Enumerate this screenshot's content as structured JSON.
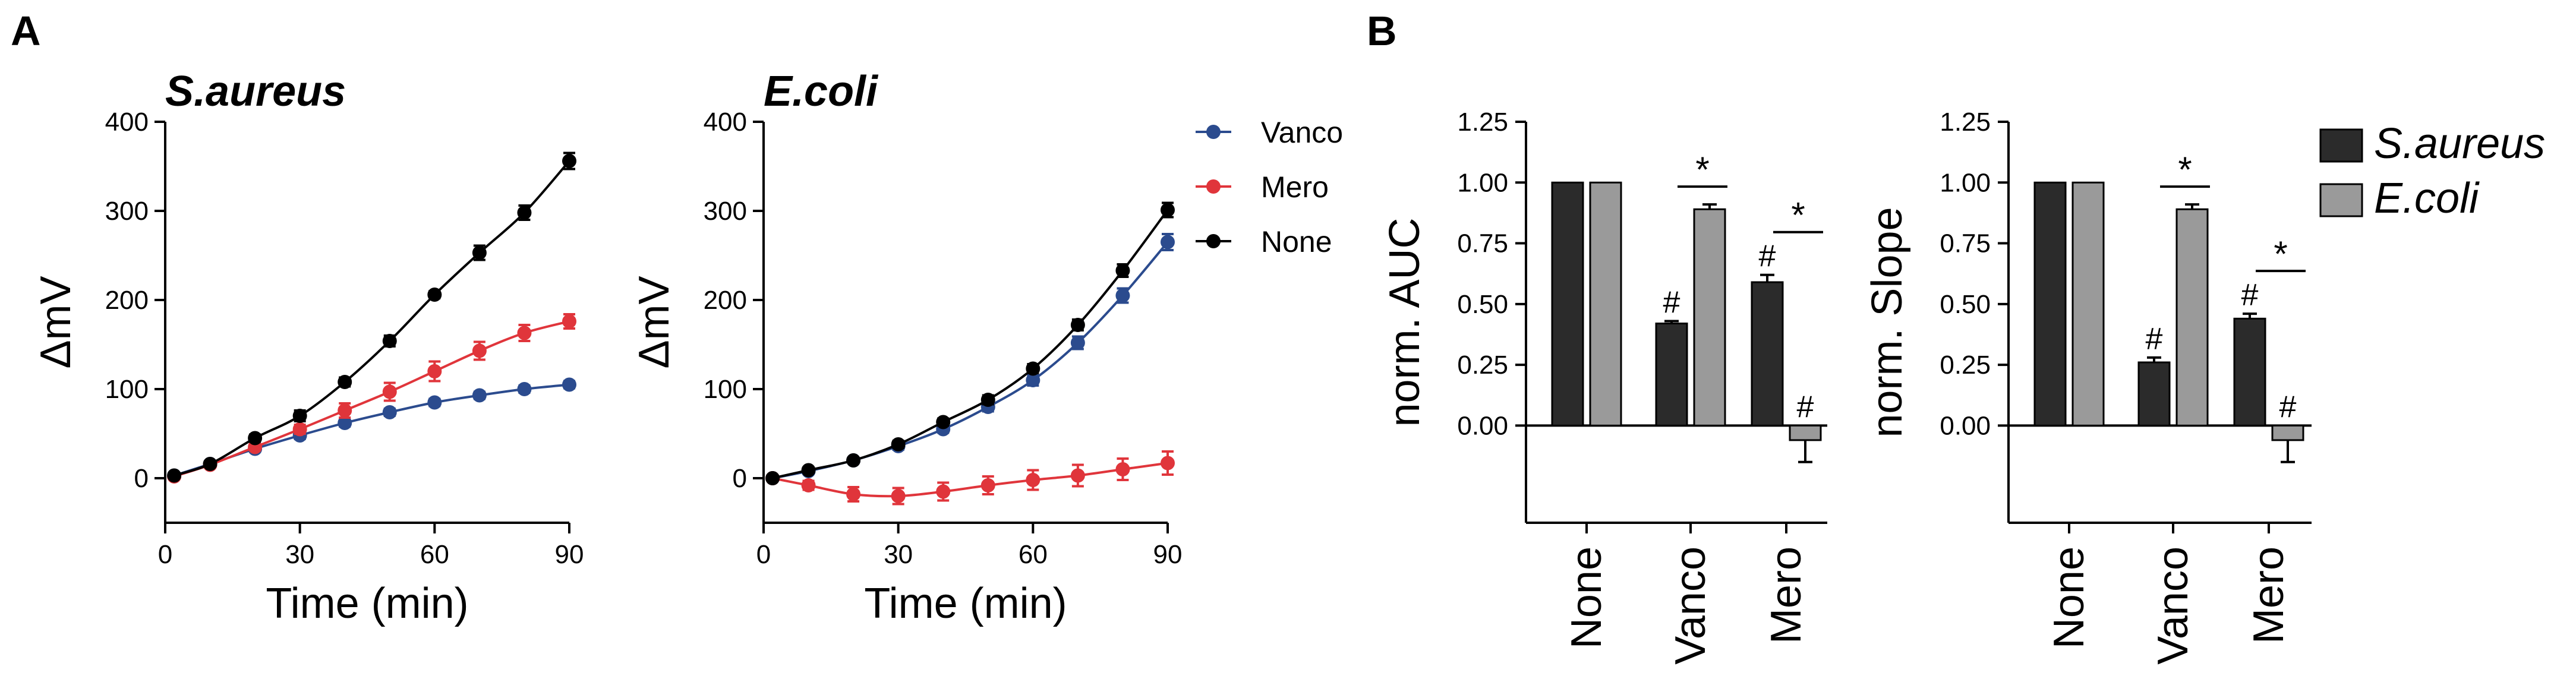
{
  "panels": {
    "A": "A",
    "B": "B"
  },
  "chart_data": [
    {
      "type": "line",
      "panel": "A",
      "title": "S.aureus",
      "xlabel": "Time (min)",
      "ylabel": "ΔmV",
      "xlim": [
        0,
        90
      ],
      "ylim": [
        -50,
        400
      ],
      "xticks": [
        0,
        30,
        60,
        90
      ],
      "yticks": [
        0,
        100,
        200,
        300,
        400
      ],
      "x": [
        2,
        10,
        20,
        30,
        40,
        50,
        60,
        70,
        80,
        90
      ],
      "series": [
        {
          "name": "Vanco",
          "color": "#2b4b8e",
          "values": [
            3,
            16,
            33,
            48,
            62,
            74,
            85,
            93,
            100,
            105
          ],
          "errors": [
            3,
            3,
            3,
            4,
            4,
            4,
            4,
            4,
            4,
            4
          ]
        },
        {
          "name": "Mero",
          "color": "#e0353b",
          "values": [
            2,
            15,
            35,
            55,
            76,
            97,
            120,
            143,
            163,
            176
          ],
          "errors": [
            3,
            3,
            4,
            5,
            8,
            10,
            11,
            10,
            9,
            8
          ]
        },
        {
          "name": "None",
          "color": "#000000",
          "values": [
            3,
            16,
            45,
            70,
            108,
            154,
            206,
            253,
            298,
            356
          ],
          "errors": [
            3,
            3,
            4,
            6,
            5,
            6,
            4,
            8,
            8,
            9
          ]
        }
      ]
    },
    {
      "type": "line",
      "panel": "A",
      "title": "E.coli",
      "xlabel": "Time (min)",
      "ylabel": "ΔmV",
      "xlim": [
        0,
        90
      ],
      "ylim": [
        -50,
        400
      ],
      "xticks": [
        0,
        30,
        60,
        90
      ],
      "yticks": [
        0,
        100,
        200,
        300,
        400
      ],
      "x": [
        2,
        10,
        20,
        30,
        40,
        50,
        60,
        70,
        80,
        90
      ],
      "series": [
        {
          "name": "Vanco",
          "color": "#2b4b8e",
          "values": [
            0,
            8,
            20,
            36,
            55,
            80,
            110,
            152,
            205,
            265
          ],
          "errors": [
            2,
            3,
            3,
            4,
            4,
            5,
            6,
            7,
            8,
            9
          ]
        },
        {
          "name": "Mero",
          "color": "#e0353b",
          "values": [
            0,
            -8,
            -18,
            -20,
            -15,
            -8,
            -2,
            3,
            10,
            17
          ],
          "errors": [
            2,
            5,
            8,
            9,
            10,
            10,
            11,
            12,
            12,
            13
          ]
        },
        {
          "name": "None",
          "color": "#000000",
          "values": [
            0,
            9,
            20,
            38,
            63,
            88,
            123,
            172,
            233,
            301
          ],
          "errors": [
            2,
            3,
            3,
            4,
            4,
            5,
            5,
            6,
            7,
            8
          ]
        }
      ],
      "legend": [
        "Vanco",
        "Mero",
        "None"
      ]
    },
    {
      "type": "bar",
      "panel": "B",
      "ylabel": "norm. AUC",
      "ylim": [
        -0.4,
        1.25
      ],
      "yticks": [
        "0.00",
        "0.25",
        "0.50",
        "0.75",
        "1.00",
        "1.25"
      ],
      "categories": [
        "None",
        "Vanco",
        "Mero"
      ],
      "series": [
        {
          "name": "S.aureus",
          "color": "#2b2b2b",
          "values": [
            1.0,
            0.42,
            0.59
          ],
          "errors": [
            0,
            0.01,
            0.03
          ]
        },
        {
          "name": "E.coli",
          "color": "#9a9a9a",
          "values": [
            1.0,
            0.89,
            -0.06
          ],
          "errors": [
            0,
            0.02,
            0.09
          ]
        }
      ],
      "annotations": {
        "hash": "#",
        "star": "*"
      }
    },
    {
      "type": "bar",
      "panel": "B",
      "ylabel": "norm. Slope",
      "ylim": [
        -0.4,
        1.25
      ],
      "yticks": [
        "0.00",
        "0.25",
        "0.50",
        "0.75",
        "1.00",
        "1.25"
      ],
      "categories": [
        "None",
        "Vanco",
        "Mero"
      ],
      "series": [
        {
          "name": "S.aureus",
          "color": "#2b2b2b",
          "values": [
            1.0,
            0.26,
            0.44
          ],
          "errors": [
            0,
            0.02,
            0.02
          ]
        },
        {
          "name": "E.coli",
          "color": "#9a9a9a",
          "values": [
            1.0,
            0.89,
            -0.06
          ],
          "errors": [
            0,
            0.02,
            0.09
          ]
        }
      ],
      "legend": [
        "S.aureus",
        "E.coli"
      ],
      "annotations": {
        "hash": "#",
        "star": "*"
      }
    }
  ]
}
